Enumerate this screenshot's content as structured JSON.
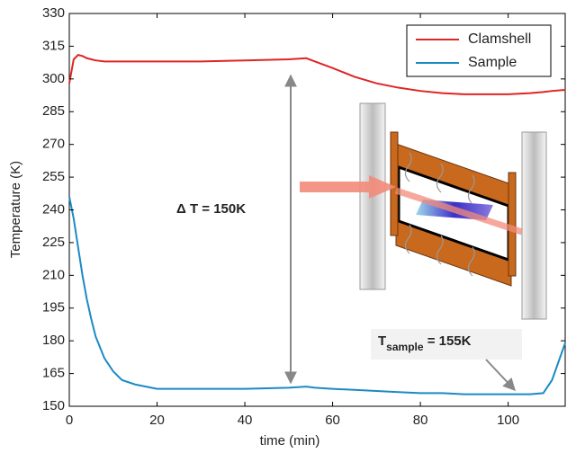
{
  "chart_data": {
    "type": "line",
    "xlabel": "time (min)",
    "ylabel": "Temperature (K)",
    "x": [
      0,
      1,
      2,
      3,
      4,
      5,
      6,
      8,
      10,
      12,
      15,
      20,
      30,
      40,
      50,
      54,
      56,
      60,
      65,
      70,
      75,
      80,
      85,
      90,
      95,
      100,
      105,
      108,
      110,
      113
    ],
    "series": [
      {
        "name": "Clamshell",
        "color": "#e02424",
        "values": [
          298,
          309,
          311,
          310.5,
          309.5,
          309,
          308.5,
          308,
          308,
          308,
          308,
          308,
          308,
          308.5,
          309,
          309.5,
          308,
          305,
          301,
          298,
          296,
          294.5,
          293.5,
          293,
          293,
          293,
          293.5,
          294,
          294.5,
          295
        ]
      },
      {
        "name": "Sample",
        "color": "#1b8ac4",
        "values": [
          246,
          236,
          223,
          210,
          199,
          190,
          182,
          172,
          166,
          162,
          160,
          158,
          158,
          158,
          158.5,
          159,
          158.5,
          158,
          157.5,
          157,
          156.5,
          156,
          156,
          155.5,
          155.5,
          155.5,
          155.5,
          156,
          162,
          179
        ]
      }
    ],
    "xlim": [
      0,
      113
    ],
    "ylim": [
      150,
      330
    ],
    "xticks": [
      0,
      20,
      40,
      60,
      80,
      100
    ],
    "yticks": [
      150,
      165,
      180,
      195,
      210,
      225,
      240,
      255,
      270,
      285,
      300,
      315,
      330
    ],
    "legend": "upper right",
    "annotations": [
      {
        "text": "Δ T = 150K"
      },
      {
        "text": "T",
        "subscript": "sample",
        "rest": " = 155K"
      }
    ]
  }
}
